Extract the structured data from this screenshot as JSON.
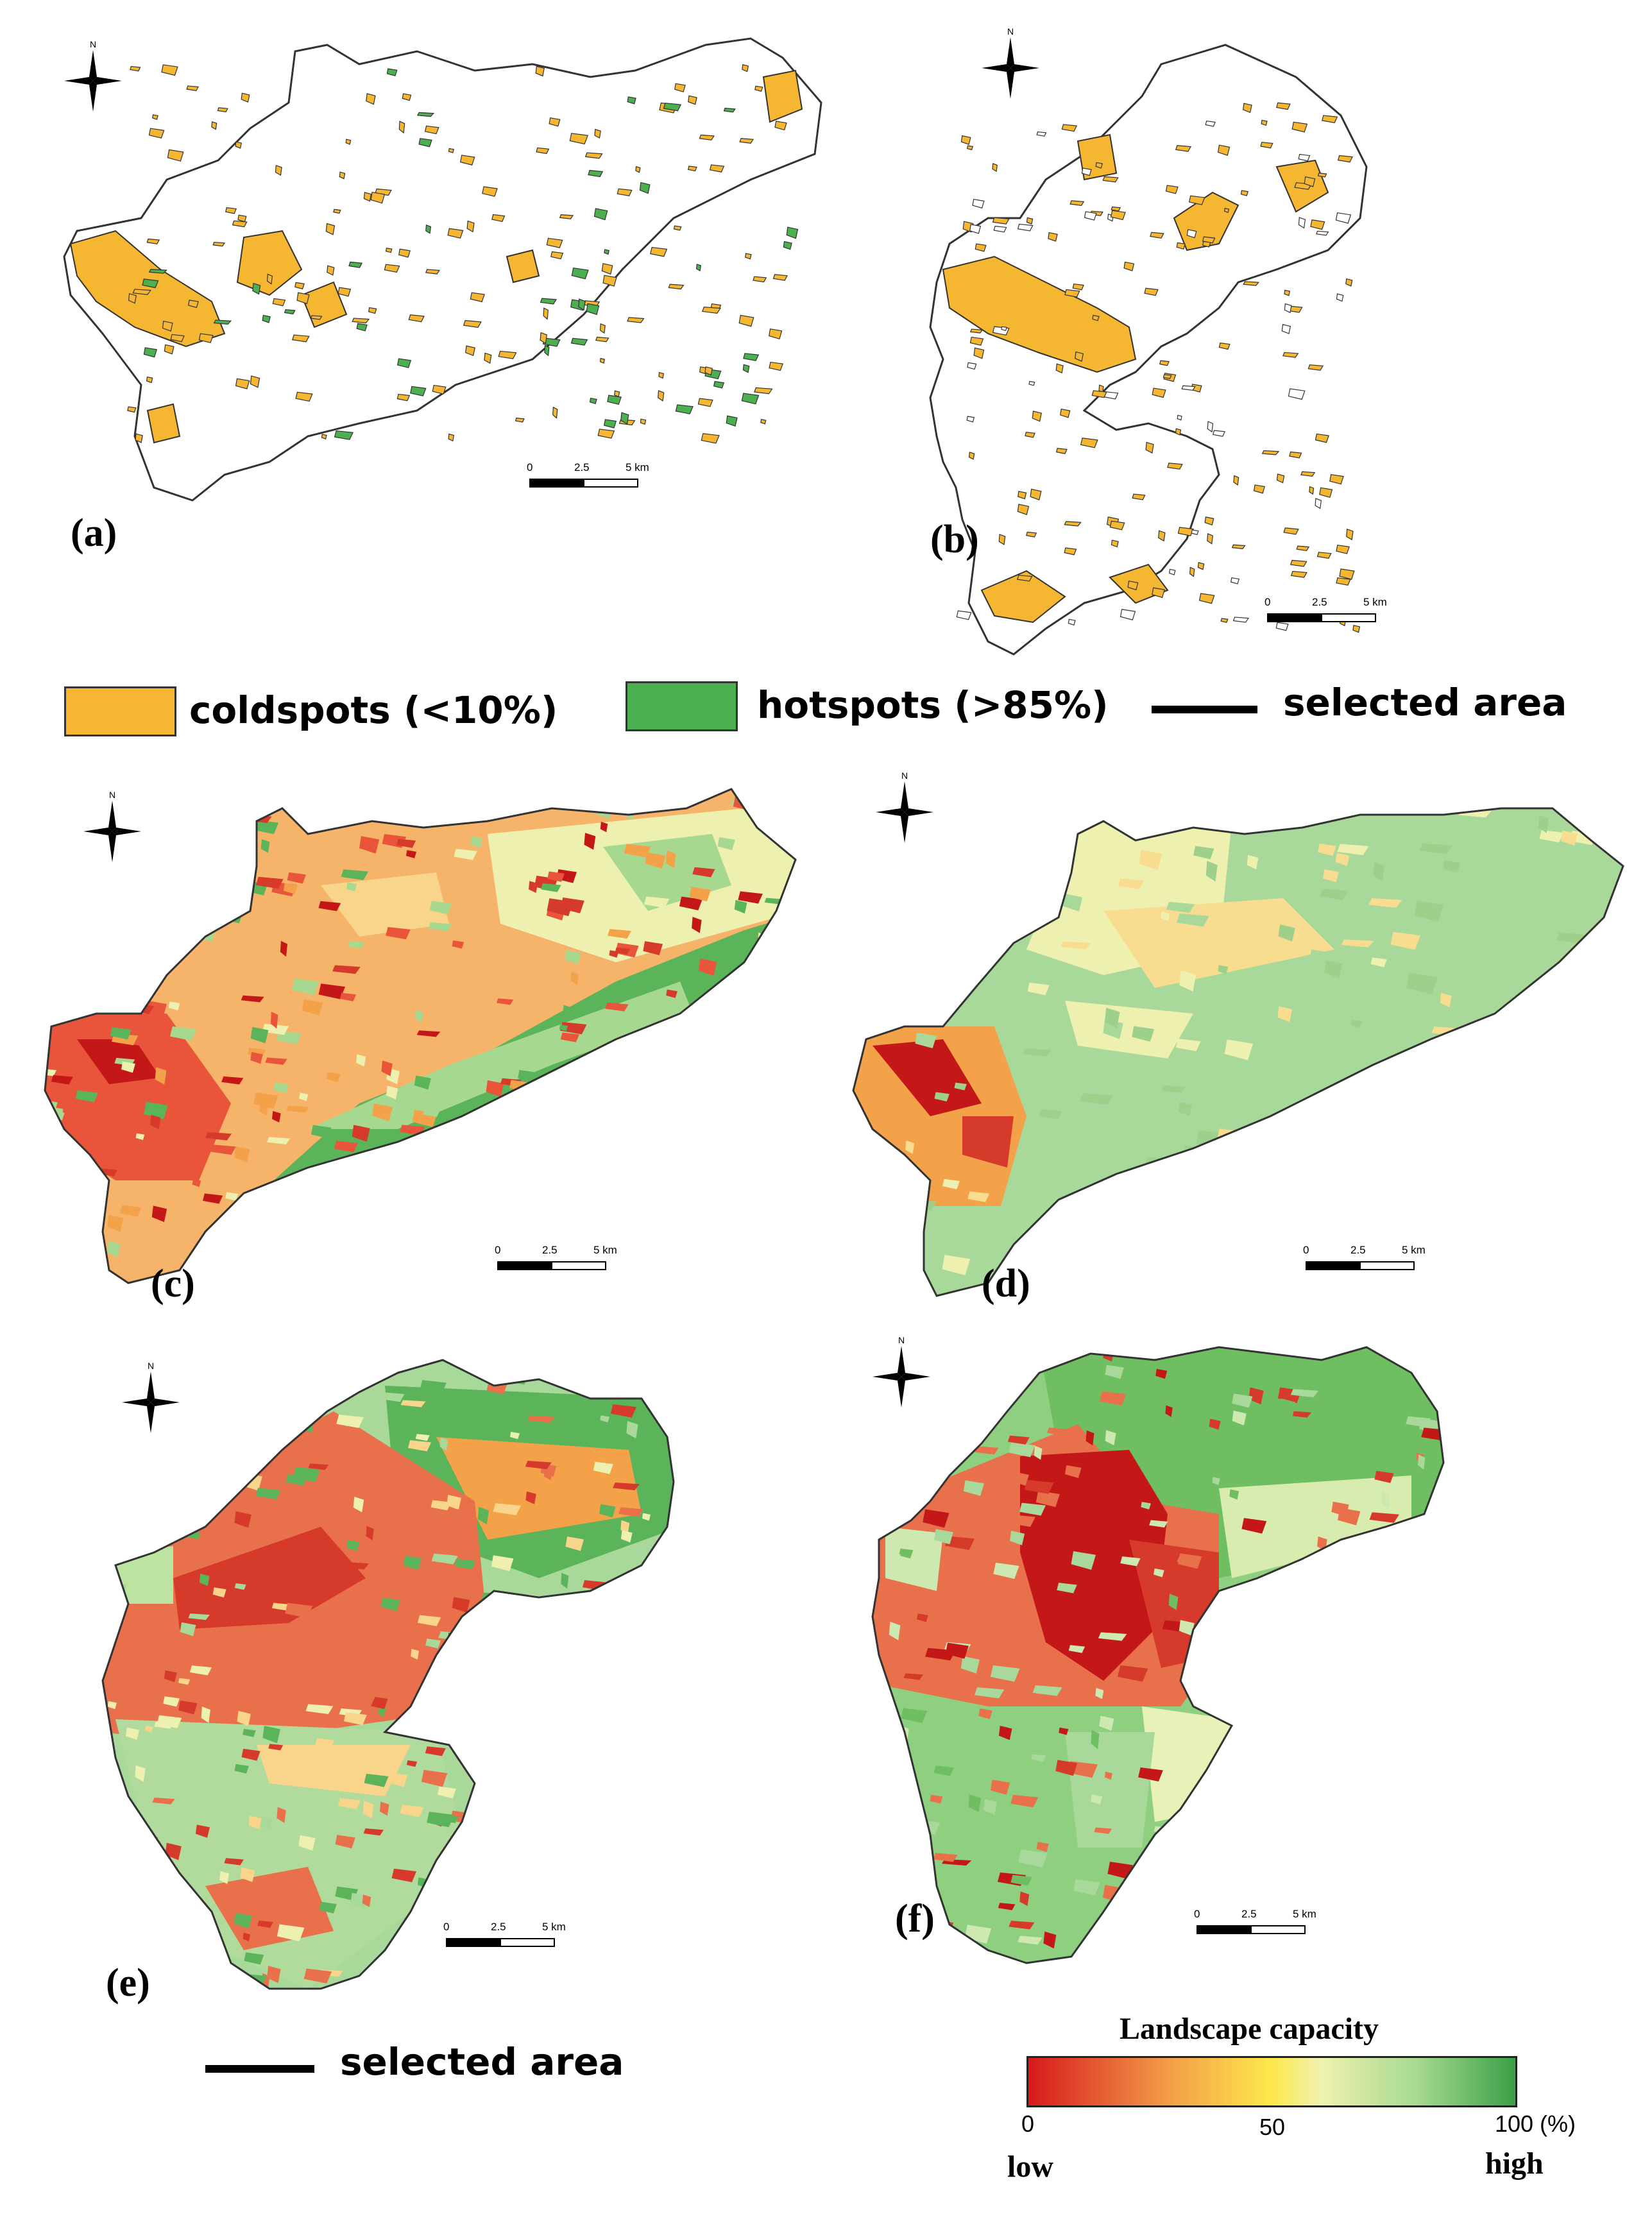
{
  "panels": [
    {
      "id": "a",
      "label": "(a)",
      "type": "hotspot-map",
      "scale": [
        "0",
        "2.5",
        "5 km"
      ]
    },
    {
      "id": "b",
      "label": "(b)",
      "type": "hotspot-map",
      "scale": [
        "0",
        "2.5",
        "5 km"
      ]
    },
    {
      "id": "c",
      "label": "(c)",
      "type": "capacity-map",
      "scale": [
        "0",
        "2.5",
        "5 km"
      ]
    },
    {
      "id": "d",
      "label": "(d)",
      "type": "capacity-map",
      "scale": [
        "0",
        "2.5",
        "5 km"
      ]
    },
    {
      "id": "e",
      "label": "(e)",
      "type": "capacity-map",
      "scale": [
        "0",
        "2.5",
        "5 km"
      ]
    },
    {
      "id": "f",
      "label": "(f)",
      "type": "capacity-map",
      "scale": [
        "0",
        "2.5",
        "5 km"
      ]
    }
  ],
  "north_label": "N",
  "legend_top": {
    "coldspots": {
      "label": "coldspots (<10%)",
      "color": "#f5b731"
    },
    "hotspots": {
      "label": "hotspots (>85%)",
      "color": "#4caf50"
    },
    "selected": {
      "label": "selected area"
    }
  },
  "legend_bottom": {
    "selected": {
      "label": "selected area"
    }
  },
  "colorbar": {
    "title": "Landscape capacity",
    "ticks": [
      "0",
      "50",
      "100"
    ],
    "unit": "(%)",
    "low": "low",
    "high": "high",
    "colors": [
      "#d7191c",
      "#f4a24a",
      "#fde84a",
      "#e8f0a8",
      "#a6d98f",
      "#3aa047"
    ]
  }
}
